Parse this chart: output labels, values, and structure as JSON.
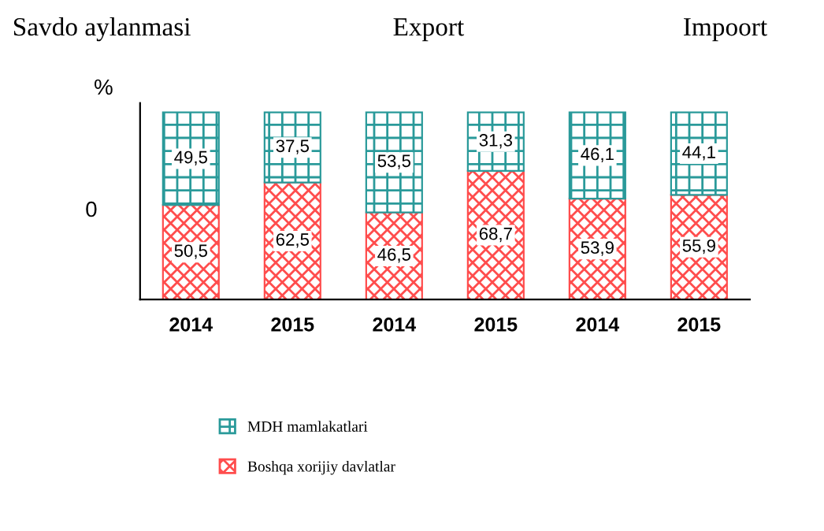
{
  "chart_data": {
    "type": "bar",
    "stacked": true,
    "ylabel": "%",
    "categories": [
      "2014",
      "2015",
      "2014",
      "2015",
      "2014",
      "2015"
    ],
    "series": [
      {
        "name": "Boshqa xorijiy davlatlar",
        "color": "#ff4d4d",
        "values": [
          50.5,
          62.5,
          46.5,
          68.7,
          53.9,
          55.9
        ],
        "value_labels": [
          "50,5",
          "62,5",
          "46,5",
          "68,7",
          "53,9",
          "55,9"
        ]
      },
      {
        "name": "MDH mamlakatlari",
        "color": "#2a9a9a",
        "values": [
          49.5,
          37.5,
          53.5,
          31.3,
          46.1,
          44.1
        ],
        "value_labels": [
          "49,5",
          "37,5",
          "53,5",
          "31,3",
          "46,1",
          "44,1"
        ]
      }
    ],
    "legend": "bottom",
    "grid": false,
    "annotations": [
      "Savdo aylanmasi",
      "Export",
      "Impoort",
      "0"
    ]
  }
}
